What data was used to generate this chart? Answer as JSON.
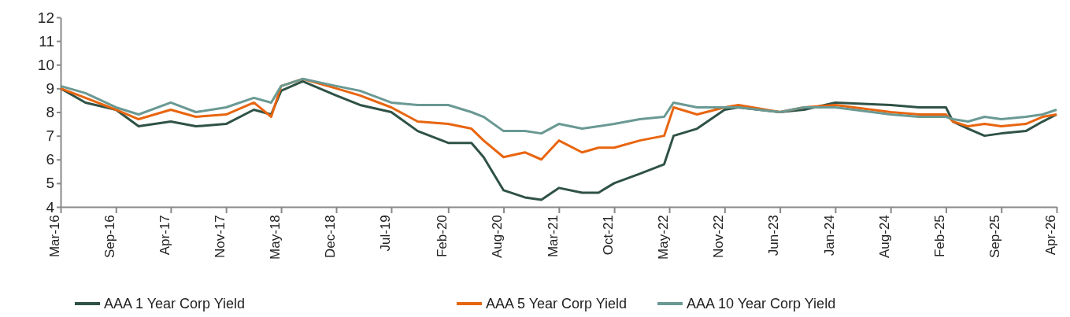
{
  "chart_data": {
    "type": "line",
    "x": [
      "2016-03-01",
      "2016-06-01",
      "2016-09-22",
      "2016-12-15",
      "2017-04-13",
      "2017-07-15",
      "2017-11-04",
      "2018-02-15",
      "2018-04-20",
      "2018-05-27",
      "2018-08-15",
      "2018-12-17",
      "2019-03-15",
      "2019-07-09",
      "2019-10-15",
      "2020-02-05",
      "2020-05-01",
      "2020-06-15",
      "2020-08-28",
      "2020-11-15",
      "2021-01-15",
      "2021-03-21",
      "2021-06-15",
      "2021-08-15",
      "2021-10-12",
      "2022-01-15",
      "2022-04-15",
      "2022-05-20",
      "2022-08-15",
      "2022-11-25",
      "2023-01-15",
      "2023-06-18",
      "2023-09-15",
      "2024-01-09",
      "2024-08-01",
      "2024-11-15",
      "2025-02-22",
      "2025-03-20",
      "2025-05-15",
      "2025-07-15",
      "2025-09-15",
      "2025-12-15",
      "2026-02-15",
      "2026-04-08"
    ],
    "series": [
      {
        "name": "AAA 1 Year Corp Yield",
        "color": "#2f5246",
        "values": [
          9.0,
          8.4,
          8.1,
          7.4,
          7.6,
          7.4,
          7.5,
          8.1,
          7.9,
          8.9,
          9.3,
          8.7,
          8.3,
          8.0,
          7.2,
          6.7,
          6.7,
          6.1,
          4.7,
          4.4,
          4.3,
          4.8,
          4.6,
          4.6,
          5.0,
          5.4,
          5.8,
          7.0,
          7.3,
          8.1,
          8.2,
          8.0,
          8.1,
          8.4,
          8.3,
          8.2,
          8.2,
          7.6,
          7.3,
          7.0,
          7.1,
          7.2,
          7.6,
          7.9
        ]
      },
      {
        "name": "AAA 5 Year Corp Yield",
        "color": "#e8650f",
        "values": [
          9.0,
          8.6,
          8.1,
          7.7,
          8.1,
          7.8,
          7.9,
          8.4,
          7.8,
          9.1,
          9.4,
          9.0,
          8.7,
          8.2,
          7.6,
          7.5,
          7.3,
          6.8,
          6.1,
          6.3,
          6.0,
          6.8,
          6.3,
          6.5,
          6.5,
          6.8,
          7.0,
          8.2,
          7.9,
          8.2,
          8.3,
          8.0,
          8.2,
          8.3,
          8.0,
          7.9,
          7.9,
          7.6,
          7.4,
          7.5,
          7.4,
          7.5,
          7.8,
          7.9
        ]
      },
      {
        "name": "AAA 10 Year Corp Yield",
        "color": "#6a9993",
        "values": [
          9.1,
          8.8,
          8.2,
          7.9,
          8.4,
          8.0,
          8.2,
          8.6,
          8.4,
          9.1,
          9.4,
          9.1,
          8.9,
          8.4,
          8.3,
          8.3,
          8.0,
          7.8,
          7.2,
          7.2,
          7.1,
          7.5,
          7.3,
          7.4,
          7.5,
          7.7,
          7.8,
          8.4,
          8.2,
          8.2,
          8.2,
          8.0,
          8.2,
          8.2,
          7.9,
          7.8,
          7.8,
          7.7,
          7.6,
          7.8,
          7.7,
          7.8,
          7.9,
          8.1
        ]
      }
    ],
    "xlim": [
      "2016-03-01",
      "2026-04-08"
    ],
    "xticks": [
      {
        "value": "2016-03-01",
        "label": "Mar-16"
      },
      {
        "value": "2016-09-22",
        "label": "Sep-16"
      },
      {
        "value": "2017-04-13",
        "label": "Apr-17"
      },
      {
        "value": "2017-11-04",
        "label": "Nov-17"
      },
      {
        "value": "2018-05-27",
        "label": "May-18"
      },
      {
        "value": "2018-12-17",
        "label": "Dec-18"
      },
      {
        "value": "2019-07-09",
        "label": "Jul-19"
      },
      {
        "value": "2020-02-05",
        "label": "Feb-20"
      },
      {
        "value": "2020-08-28",
        "label": "Aug-20"
      },
      {
        "value": "2021-03-21",
        "label": "Mar-21"
      },
      {
        "value": "2021-10-12",
        "label": "Oct-21"
      },
      {
        "value": "2022-05-04",
        "label": "May-22"
      },
      {
        "value": "2022-11-25",
        "label": "Nov-22"
      },
      {
        "value": "2023-06-18",
        "label": "Jun-23"
      },
      {
        "value": "2024-01-09",
        "label": "Jan-24"
      },
      {
        "value": "2024-08-01",
        "label": "Aug-24"
      },
      {
        "value": "2025-02-22",
        "label": "Feb-25"
      },
      {
        "value": "2025-09-15",
        "label": "Sep-25"
      },
      {
        "value": "2026-04-08",
        "label": "Apr-26"
      }
    ],
    "ylim": [
      4,
      12
    ],
    "yticks": [
      4,
      5,
      6,
      7,
      8,
      9,
      10,
      11,
      12
    ],
    "grid": false,
    "legend": "bottom",
    "marker": "none",
    "line_style": "solid"
  }
}
